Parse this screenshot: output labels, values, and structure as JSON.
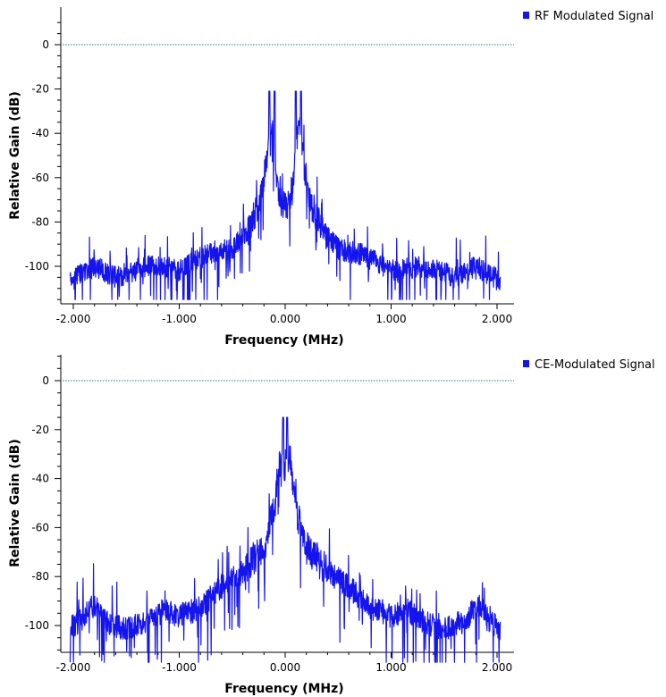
{
  "chart_data": [
    {
      "type": "line",
      "xlabel": "Frequency (MHz)",
      "ylabel": "Relative Gain (dB)",
      "xlim": [
        -2.05,
        2.05
      ],
      "ylim": [
        -117,
        16
      ],
      "xticks": [
        -2.0,
        -1.0,
        0.0,
        1.0,
        2.0
      ],
      "xtick_labels": [
        "-2.000",
        "-1.000",
        "0.000",
        "1.000",
        "2.000"
      ],
      "yticks": [
        0,
        -20,
        -40,
        -60,
        -80,
        -100
      ],
      "ytick_labels": [
        "0",
        "-20",
        "-40",
        "-60",
        "-80",
        "-100"
      ],
      "reference_line": {
        "y": 0,
        "color": "#0f8a8a"
      },
      "legend_position": "top-right",
      "series": [
        {
          "name": "RF Modulated Signal",
          "color": "#1414ee",
          "envelope": {
            "x": [
              -2.05,
              -1.8,
              -1.6,
              -1.3,
              -1.0,
              -0.75,
              -0.5,
              -0.35,
              -0.25,
              -0.18,
              -0.15,
              -0.12,
              -0.1,
              -0.07,
              -0.03,
              0.0,
              0.03,
              0.07,
              0.1,
              0.12,
              0.15,
              0.18,
              0.25,
              0.35,
              0.5,
              0.75,
              1.0,
              1.3,
              1.6,
              1.8,
              2.05
            ],
            "y": [
              -107,
              -100,
              -105,
              -100,
              -102,
              -95,
              -92,
              -84,
              -72,
              -55,
              -40,
              -38,
              -45,
              -65,
              -72,
              -73,
              -72,
              -65,
              -45,
              -38,
              -40,
              -55,
              -72,
              -84,
              -92,
              -95,
              -102,
              -100,
              -105,
              -100,
              -107
            ]
          },
          "spikes": [
            {
              "x": -0.15,
              "y": -21
            },
            {
              "x": -0.1,
              "y": -21
            },
            {
              "x": 0.1,
              "y": -21
            },
            {
              "x": 0.15,
              "y": -21
            }
          ]
        },
        {
          "name": "CE-Modulated Signal",
          "color": "#1414ee",
          "envelope": {
            "x": [
              -2.05,
              -1.9,
              -1.85,
              -1.8,
              -1.7,
              -1.5,
              -1.3,
              -1.15,
              -1.0,
              -0.8,
              -0.6,
              -0.4,
              -0.2,
              -0.1,
              -0.05,
              0.0,
              0.05,
              0.1,
              0.2,
              0.4,
              0.6,
              0.8,
              1.0,
              1.15,
              1.3,
              1.5,
              1.7,
              1.8,
              1.85,
              1.9,
              2.05
            ],
            "y": [
              -102,
              -97,
              -92,
              -92,
              -98,
              -102,
              -98,
              -94,
              -96,
              -93,
              -84,
              -78,
              -68,
              -52,
              -33,
              -34,
              -33,
              -52,
              -68,
              -78,
              -84,
              -93,
              -96,
              -94,
              -98,
              -102,
              -98,
              -92,
              -92,
              -97,
              -102
            ]
          },
          "spikes": [
            {
              "x": -0.02,
              "y": -15
            },
            {
              "x": 0.02,
              "y": -15
            }
          ]
        }
      ]
    }
  ],
  "panels": [
    {
      "legend_label": "RF Modulated Signal",
      "xlabel": "Frequency (MHz)",
      "ylabel": "Relative Gain (dB)"
    },
    {
      "legend_label": "CE-Modulated Signal",
      "xlabel": "Frequency (MHz)",
      "ylabel": "Relative Gain (dB)"
    }
  ]
}
